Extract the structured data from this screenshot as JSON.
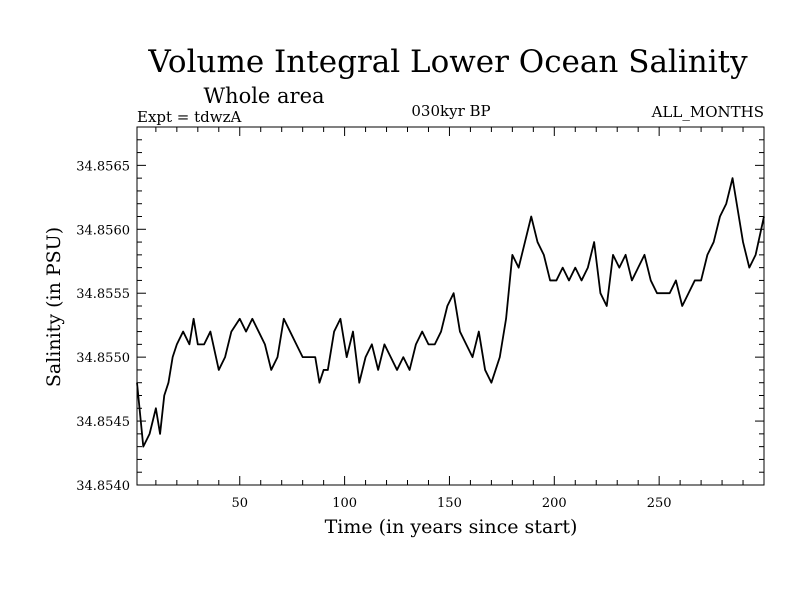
{
  "header": {
    "title": "Volume Integral Lower Ocean Salinity",
    "subtitle": "Whole area",
    "experiment": "Expt = tdwzA",
    "period": "030kyr BP",
    "months": "ALL_MONTHS"
  },
  "chart_data": {
    "type": "line",
    "title": "Volume Integral Lower Ocean Salinity",
    "subtitle": "Whole area",
    "xlabel": "Time (in years since start)",
    "ylabel": "Salinity (in PSU)",
    "xlim": [
      1,
      300
    ],
    "ylim": [
      34.854,
      34.8568
    ],
    "x_ticks": [
      50,
      100,
      150,
      200,
      250
    ],
    "y_ticks": [
      34.854,
      34.8545,
      34.855,
      34.8555,
      34.856,
      34.8565
    ],
    "y_tick_labels": [
      "34.8540",
      "34.8545",
      "34.8550",
      "34.8555",
      "34.8560",
      "34.8565"
    ],
    "grid": false,
    "series": [
      {
        "color": "#000000",
        "x": [
          1,
          4,
          7,
          10,
          12,
          14,
          16,
          18,
          20,
          23,
          26,
          28,
          30,
          33,
          36,
          40,
          43,
          46,
          50,
          53,
          56,
          59,
          62,
          65,
          68,
          71,
          74,
          77,
          80,
          83,
          86,
          88,
          90,
          92,
          95,
          98,
          101,
          104,
          107,
          110,
          113,
          116,
          119,
          122,
          125,
          128,
          131,
          134,
          137,
          140,
          143,
          146,
          149,
          152,
          155,
          158,
          161,
          164,
          167,
          170,
          172,
          174,
          177,
          180,
          183,
          186,
          189,
          192,
          195,
          198,
          201,
          204,
          207,
          210,
          213,
          216,
          219,
          222,
          225,
          228,
          231,
          234,
          237,
          240,
          243,
          246,
          249,
          252,
          255,
          258,
          261,
          264,
          267,
          270,
          273,
          276,
          279,
          282,
          285,
          287,
          290,
          293,
          296,
          300
        ],
        "y": [
          34.8548,
          34.8543,
          34.8544,
          34.8546,
          34.8544,
          34.8547,
          34.8548,
          34.855,
          34.8551,
          34.8552,
          34.8551,
          34.8553,
          34.8551,
          34.8551,
          34.8552,
          34.8549,
          34.855,
          34.8552,
          34.8553,
          34.8552,
          34.8553,
          34.8552,
          34.8551,
          34.8549,
          34.855,
          34.8553,
          34.8552,
          34.8551,
          34.855,
          34.855,
          34.855,
          34.8548,
          34.8549,
          34.8549,
          34.8552,
          34.8553,
          34.855,
          34.8552,
          34.8548,
          34.855,
          34.8551,
          34.8549,
          34.8551,
          34.855,
          34.8549,
          34.855,
          34.8549,
          34.8551,
          34.8552,
          34.8551,
          34.8551,
          34.8552,
          34.8554,
          34.8555,
          34.8552,
          34.8551,
          34.855,
          34.8552,
          34.8549,
          34.8548,
          34.8549,
          34.855,
          34.8553,
          34.8558,
          34.8557,
          34.8559,
          34.8561,
          34.8559,
          34.8558,
          34.8556,
          34.8556,
          34.8557,
          34.8556,
          34.8557,
          34.8556,
          34.8557,
          34.8559,
          34.8555,
          34.8554,
          34.8558,
          34.8557,
          34.8558,
          34.8556,
          34.8557,
          34.8558,
          34.8556,
          34.8555,
          34.8555,
          34.8555,
          34.8556,
          34.8554,
          34.8555,
          34.8556,
          34.8556,
          34.8558,
          34.8559,
          34.8561,
          34.8562,
          34.8564,
          34.8562,
          34.8559,
          34.8557,
          34.8558,
          34.8561
        ]
      }
    ]
  }
}
